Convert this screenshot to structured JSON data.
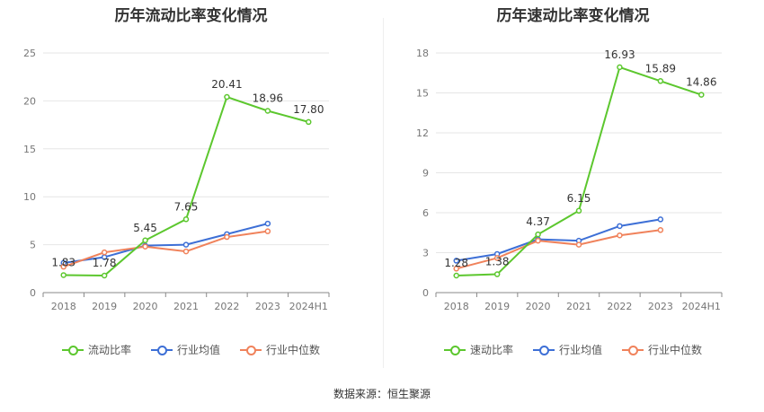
{
  "source_text": "数据来源：恒生聚源",
  "chart_data": [
    {
      "type": "line",
      "title": "历年流动比率变化情况",
      "categories": [
        "2018",
        "2019",
        "2020",
        "2021",
        "2022",
        "2023",
        "2024H1"
      ],
      "ylim": [
        0,
        25
      ],
      "yticks": [
        0,
        5,
        10,
        15,
        20,
        25
      ],
      "grid": true,
      "legend_position": "bottom",
      "series": [
        {
          "name": "流动比率",
          "color": "#5cc72e",
          "values": [
            1.83,
            1.78,
            5.45,
            7.65,
            20.41,
            18.96,
            17.8
          ],
          "labels": [
            "1.83",
            "1.78",
            "5.45",
            "7.65",
            "20.41",
            "18.96",
            "17.80"
          ]
        },
        {
          "name": "行业均值",
          "color": "#3d6fd6",
          "values": [
            3.1,
            3.7,
            4.9,
            5.0,
            6.1,
            7.2,
            null
          ]
        },
        {
          "name": "行业中位数",
          "color": "#f0825b",
          "values": [
            2.7,
            4.2,
            4.8,
            4.3,
            5.8,
            6.4,
            null
          ]
        }
      ]
    },
    {
      "type": "line",
      "title": "历年速动比率变化情况",
      "categories": [
        "2018",
        "2019",
        "2020",
        "2021",
        "2022",
        "2023",
        "2024H1"
      ],
      "ylim": [
        0,
        18
      ],
      "yticks": [
        0,
        3,
        6,
        9,
        12,
        15,
        18
      ],
      "grid": true,
      "legend_position": "bottom",
      "series": [
        {
          "name": "速动比率",
          "color": "#5cc72e",
          "values": [
            1.28,
            1.38,
            4.37,
            6.15,
            16.93,
            15.89,
            14.86
          ],
          "labels": [
            "1.28",
            "1.38",
            "4.37",
            "6.15",
            "16.93",
            "15.89",
            "14.86"
          ]
        },
        {
          "name": "行业均值",
          "color": "#3d6fd6",
          "values": [
            2.4,
            2.9,
            4.0,
            3.9,
            5.0,
            5.5,
            null
          ]
        },
        {
          "name": "行业中位数",
          "color": "#f0825b",
          "values": [
            1.8,
            2.6,
            3.9,
            3.6,
            4.3,
            4.7,
            null
          ]
        }
      ]
    }
  ]
}
